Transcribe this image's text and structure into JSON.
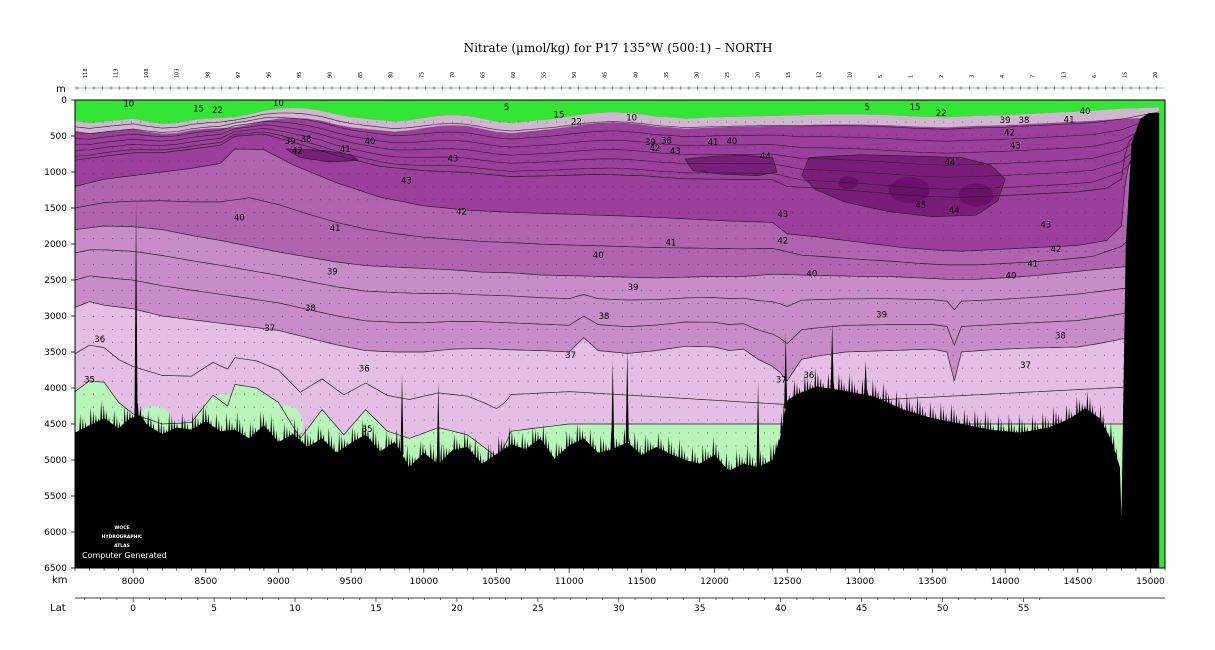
{
  "chart_data": {
    "type": "heatmap",
    "title": "Nitrate (µmol/kg) for P17 135°W (500:1) – NORTH",
    "depth_unit_label": "m",
    "distance_unit_label": "km",
    "latitude_label": "Lat",
    "x_range_km": [
      7600,
      15100
    ],
    "y_range_m": [
      0,
      6500
    ],
    "x_ticks": [
      8000,
      8500,
      9000,
      9500,
      10000,
      10500,
      11000,
      11500,
      12000,
      12500,
      13000,
      13500,
      14000,
      14500,
      15000
    ],
    "y_ticks": [
      0,
      500,
      1000,
      1500,
      2000,
      2500,
      3000,
      3500,
      4000,
      4500,
      5000,
      5500,
      6000,
      6500
    ],
    "lat_ticks": [
      0,
      5,
      10,
      15,
      20,
      25,
      30,
      35,
      40,
      45,
      50,
      55
    ],
    "station_labels": [
      "118",
      "113",
      "108",
      "103",
      "98",
      "97",
      "96",
      "95",
      "90",
      "85",
      "80",
      "75",
      "70",
      "65",
      "60",
      "55",
      "50",
      "45",
      "40",
      "35",
      "30",
      "25",
      "20",
      "15",
      "12",
      "10",
      "5",
      "1",
      "2",
      "3",
      "4",
      "7",
      "13",
      "6",
      "15",
      "20"
    ],
    "color_levels": [
      {
        "min": null,
        "max": 35,
        "color": "#b8f5b8"
      },
      {
        "min": 35,
        "max": 37,
        "color": "#e4bee4"
      },
      {
        "min": 37,
        "max": 40,
        "color": "#c88dc8"
      },
      {
        "min": 40,
        "max": 42,
        "color": "#b064b0"
      },
      {
        "min": 42,
        "max": 44,
        "color": "#9c3f9c"
      },
      {
        "min": 44,
        "max": null,
        "color": "#7a1d7a"
      },
      {
        "min": null,
        "max": 15,
        "color": "#33e633"
      }
    ],
    "bottom_color": "#000000",
    "contour_labels": [
      {
        "text": "10",
        "x": 7970,
        "y": 50
      },
      {
        "text": "15",
        "x": 8450,
        "y": 120
      },
      {
        "text": "22",
        "x": 8580,
        "y": 140
      },
      {
        "text": "10",
        "x": 9000,
        "y": 40
      },
      {
        "text": "5",
        "x": 10570,
        "y": 100
      },
      {
        "text": "15",
        "x": 10930,
        "y": 200
      },
      {
        "text": "22",
        "x": 11050,
        "y": 300
      },
      {
        "text": "10",
        "x": 11430,
        "y": 240
      },
      {
        "text": "5",
        "x": 13050,
        "y": 100
      },
      {
        "text": "15",
        "x": 13380,
        "y": 100
      },
      {
        "text": "22",
        "x": 13560,
        "y": 180
      },
      {
        "text": "40",
        "x": 14550,
        "y": 150
      },
      {
        "text": "39",
        "x": 9080,
        "y": 570
      },
      {
        "text": "38",
        "x": 9190,
        "y": 540
      },
      {
        "text": "40",
        "x": 9630,
        "y": 570
      },
      {
        "text": "41",
        "x": 9460,
        "y": 680
      },
      {
        "text": "42",
        "x": 9130,
        "y": 700
      },
      {
        "text": "39",
        "x": 11560,
        "y": 580
      },
      {
        "text": "38",
        "x": 11670,
        "y": 560
      },
      {
        "text": "42",
        "x": 11590,
        "y": 670
      },
      {
        "text": "43",
        "x": 11730,
        "y": 710
      },
      {
        "text": "41",
        "x": 11990,
        "y": 580
      },
      {
        "text": "40",
        "x": 12120,
        "y": 570
      },
      {
        "text": "39",
        "x": 14000,
        "y": 280
      },
      {
        "text": "38",
        "x": 14130,
        "y": 280
      },
      {
        "text": "41",
        "x": 14440,
        "y": 270
      },
      {
        "text": "42",
        "x": 14030,
        "y": 450
      },
      {
        "text": "43",
        "x": 14070,
        "y": 630
      },
      {
        "text": "43",
        "x": 10200,
        "y": 810
      },
      {
        "text": "44",
        "x": 12350,
        "y": 780
      },
      {
        "text": "44",
        "x": 13620,
        "y": 860
      },
      {
        "text": "43",
        "x": 9880,
        "y": 1120
      },
      {
        "text": "42",
        "x": 10260,
        "y": 1550
      },
      {
        "text": "43",
        "x": 12470,
        "y": 1580
      },
      {
        "text": "45",
        "x": 13420,
        "y": 1460
      },
      {
        "text": "44",
        "x": 13650,
        "y": 1530
      },
      {
        "text": "43",
        "x": 14280,
        "y": 1730
      },
      {
        "text": "40",
        "x": 8730,
        "y": 1630
      },
      {
        "text": "41",
        "x": 9390,
        "y": 1780
      },
      {
        "text": "41",
        "x": 11700,
        "y": 1980
      },
      {
        "text": "42",
        "x": 12470,
        "y": 1950
      },
      {
        "text": "42",
        "x": 14350,
        "y": 2070
      },
      {
        "text": "41",
        "x": 14190,
        "y": 2270
      },
      {
        "text": "40",
        "x": 11200,
        "y": 2150
      },
      {
        "text": "40",
        "x": 12670,
        "y": 2410
      },
      {
        "text": "40",
        "x": 14040,
        "y": 2440
      },
      {
        "text": "39",
        "x": 9370,
        "y": 2380
      },
      {
        "text": "39",
        "x": 11440,
        "y": 2600
      },
      {
        "text": "39",
        "x": 13150,
        "y": 2980
      },
      {
        "text": "38",
        "x": 9220,
        "y": 2890
      },
      {
        "text": "38",
        "x": 11240,
        "y": 3000
      },
      {
        "text": "38",
        "x": 14380,
        "y": 3270
      },
      {
        "text": "37",
        "x": 8940,
        "y": 3170
      },
      {
        "text": "37",
        "x": 11010,
        "y": 3540
      },
      {
        "text": "37",
        "x": 14140,
        "y": 3680
      },
      {
        "text": "37",
        "x": 12460,
        "y": 3880
      },
      {
        "text": "36",
        "x": 12650,
        "y": 3820
      },
      {
        "text": "36",
        "x": 7770,
        "y": 3320
      },
      {
        "text": "36",
        "x": 9590,
        "y": 3730
      },
      {
        "text": "35",
        "x": 7700,
        "y": 3880
      },
      {
        "text": "35",
        "x": 9610,
        "y": 4570
      }
    ]
  },
  "watermark": {
    "line1": "WOCE",
    "line2": "HYDROGRAPHIC",
    "line3": "ATLAS",
    "credit": "Computer Generated"
  }
}
